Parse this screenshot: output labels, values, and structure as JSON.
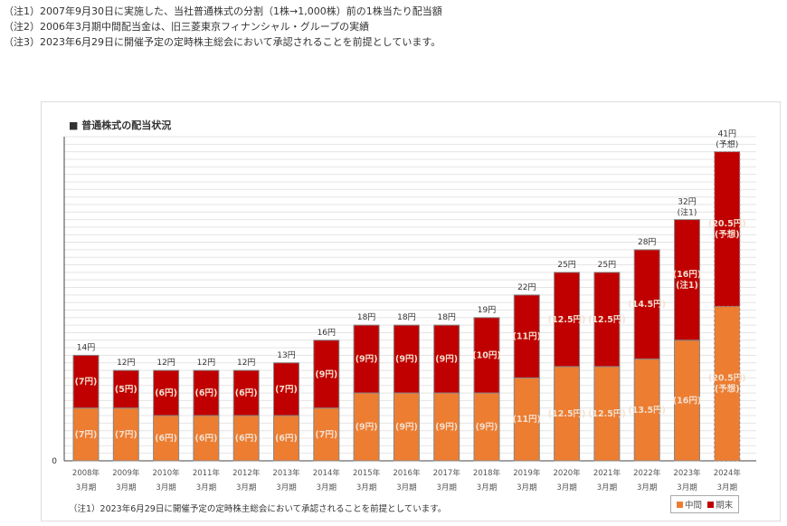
{
  "notes": [
    "（注1）2007年9月30日に実施した、当社普通株式の分割（1株→1,000株）前の1株当たり配当額",
    "（注2）2006年3月期中間配当金は、旧三菱東京フィナンシャル・グループの実績",
    "（注3）2023年6月29日に開催予定の定時株主総会において承認されることを前提としています。"
  ],
  "chart_data": {
    "type": "bar",
    "stacked": true,
    "title": "■ 普通株式の配当状況",
    "categories": [
      "2008年|3月期",
      "2009年|3月期",
      "2010年|3月期",
      "2011年|3月期",
      "2012年|3月期",
      "2013年|3月期",
      "2014年|3月期",
      "2015年|3月期",
      "2016年|3月期",
      "2017年|3月期",
      "2018年|3月期",
      "2019年|3月期",
      "2020年|3月期",
      "2021年|3月期",
      "2022年|3月期",
      "2023年|3月期",
      "2024年|3月期"
    ],
    "series": [
      {
        "name": "中間",
        "color": "#ed7d31",
        "values": [
          7,
          7,
          6,
          6,
          6,
          6,
          7,
          9,
          9,
          9,
          9,
          11,
          12.5,
          12.5,
          13.5,
          16,
          20.5
        ],
        "labels": [
          "(7円)",
          "(7円)",
          "(6円)",
          "(6円)",
          "(6円)",
          "(6円)",
          "(7円)",
          "(9円)",
          "(9円)",
          "(9円)",
          "(9円)",
          "(11円)",
          "(12.5円)",
          "(12.5円)",
          "(13.5円)",
          "(16円)",
          "(20.5円)|(予想)"
        ]
      },
      {
        "name": "期末",
        "color": "#c00000",
        "values": [
          7,
          5,
          6,
          6,
          6,
          7,
          9,
          9,
          9,
          9,
          10,
          11,
          12.5,
          12.5,
          14.5,
          16,
          20.5
        ],
        "labels": [
          "(7円)",
          "(5円)",
          "(6円)",
          "(6円)",
          "(6円)",
          "(7円)",
          "(9円)",
          "(9円)",
          "(9円)",
          "(9円)",
          "(10円)",
          "(11円)",
          "(12.5円)",
          "(12.5円)",
          "(14.5円)",
          "(16円)|(注1)",
          "(20.5円)|(予想)"
        ]
      }
    ],
    "totals": [
      "14円",
      "12円",
      "12円",
      "12円",
      "12円",
      "13円",
      "16円",
      "18円",
      "18円",
      "18円",
      "19円",
      "22円",
      "25円",
      "25円",
      "28円",
      "32円|(注1)",
      "41円|(予想)"
    ],
    "forecast_index": 16,
    "y_tick_labels": [
      "0"
    ],
    "ylim": [
      0,
      43
    ],
    "grid": true,
    "legend": "bottom-right",
    "footnote": "（注1）2023年6月29日に開催予定の定時株主総会において承認されることを前提としています。"
  }
}
